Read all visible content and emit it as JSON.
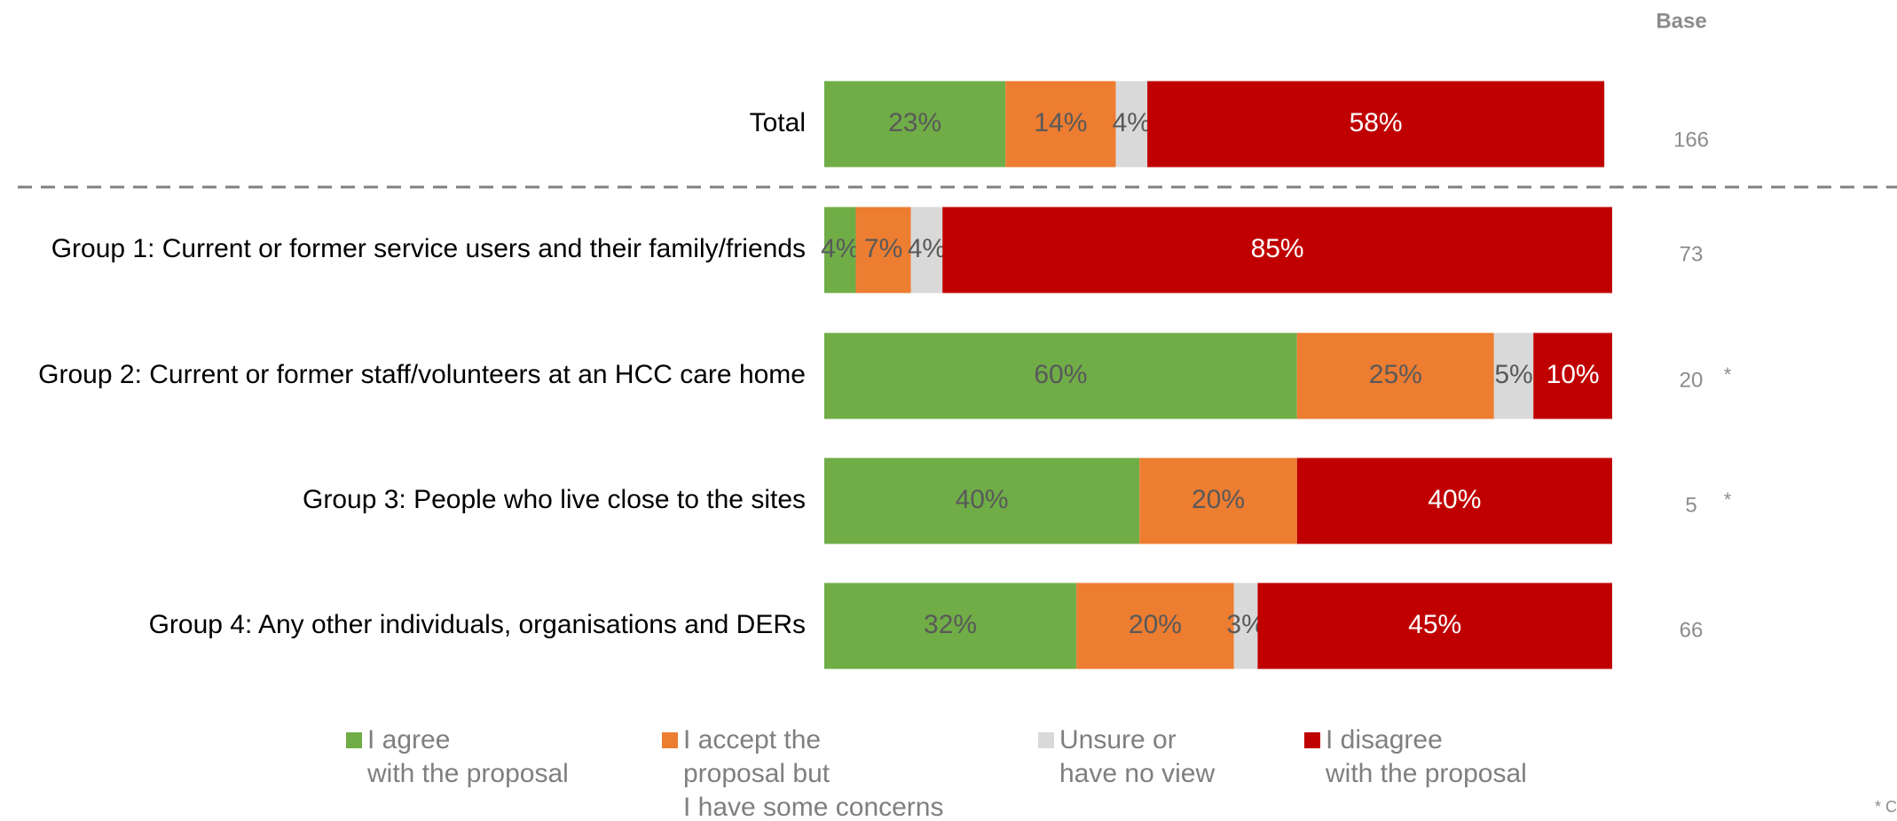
{
  "chart_data": {
    "type": "bar",
    "orientation": "horizontal",
    "stacked": true,
    "categories": [
      "Total",
      "Group 1: Current or former service users and their family/friends",
      "Group 2: Current or former staff/volunteers at an HCC care home",
      "Group 3: People who live close to the sites",
      "Group 4: Any other individuals, organisations and DERs"
    ],
    "series": [
      {
        "name": "I agree\nwith the proposal",
        "color": "#70ad47",
        "label_color": "#595959",
        "values": [
          23,
          4,
          60,
          40,
          32
        ],
        "value_labels": [
          "23%",
          "4%",
          "60%",
          "40%",
          "32%"
        ]
      },
      {
        "name": "I accept the\nproposal but\nI have some concerns",
        "color": "#ed7d31",
        "label_color": "#595959",
        "values": [
          14,
          7,
          25,
          20,
          20
        ],
        "value_labels": [
          "14%",
          "7%",
          "25%",
          "20%",
          "20%"
        ]
      },
      {
        "name": "Unsure or\nhave no view",
        "color": "#d9d9d9",
        "label_color": "#595959",
        "values": [
          4,
          4,
          5,
          0,
          3
        ],
        "value_labels": [
          "4%",
          "4%",
          "5%",
          null,
          "3%"
        ]
      },
      {
        "name": "I disagree\nwith the proposal",
        "color": "#c00000",
        "label_color": "#ffffff",
        "values": [
          58,
          85,
          10,
          40,
          45
        ],
        "value_labels": [
          "58%",
          "85%",
          "10%",
          "40%",
          "45%"
        ]
      }
    ],
    "xlim": [
      0,
      100
    ],
    "base_label": "Base",
    "base": [
      166,
      73,
      20,
      5,
      66
    ],
    "base_notes": [
      null,
      null,
      "*",
      "*",
      null
    ],
    "footnote": "* C"
  }
}
